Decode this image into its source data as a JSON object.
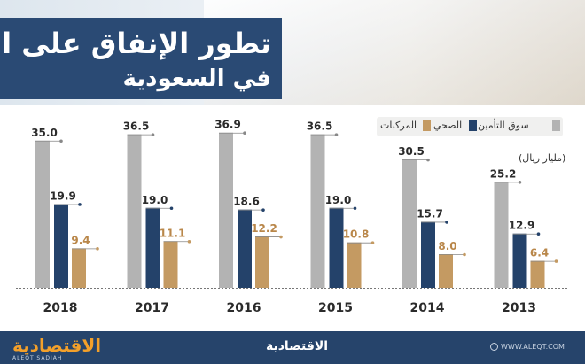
{
  "header": {
    "title_line1": "تطور الإنفاق على التأمين",
    "title_line2": "في السعودية"
  },
  "legend": {
    "items": [
      {
        "label": "سوق التأمين",
        "color": "#b3b3b3"
      },
      {
        "label": "الصحي",
        "color": "#24426a"
      },
      {
        "label": "المركبات",
        "color": "#c49a62"
      }
    ]
  },
  "unit_label": "(مليار ريال)",
  "footer": {
    "brand_left": "الاقتصادية",
    "brand_sub": "ALEQTISADIAH",
    "brand_center": "الاقتصادية",
    "url": "WWW.ALEQT.COM"
  },
  "chart_data": {
    "type": "bar",
    "categories": [
      "2018",
      "2017",
      "2016",
      "2015",
      "2014",
      "2013"
    ],
    "series": [
      {
        "name": "سوق التأمين",
        "color": "#b3b3b3",
        "values": [
          35.0,
          36.5,
          36.9,
          36.5,
          30.5,
          25.2
        ]
      },
      {
        "name": "الصحي",
        "color": "#24426a",
        "values": [
          19.9,
          19.0,
          18.6,
          19.0,
          15.7,
          12.9
        ]
      },
      {
        "name": "المركبات",
        "color": "#c49a62",
        "values": [
          9.4,
          11.1,
          12.2,
          10.8,
          8.0,
          6.4
        ]
      }
    ],
    "ylim": [
      0,
      40
    ],
    "ylabel": "(مليار ريال)"
  }
}
